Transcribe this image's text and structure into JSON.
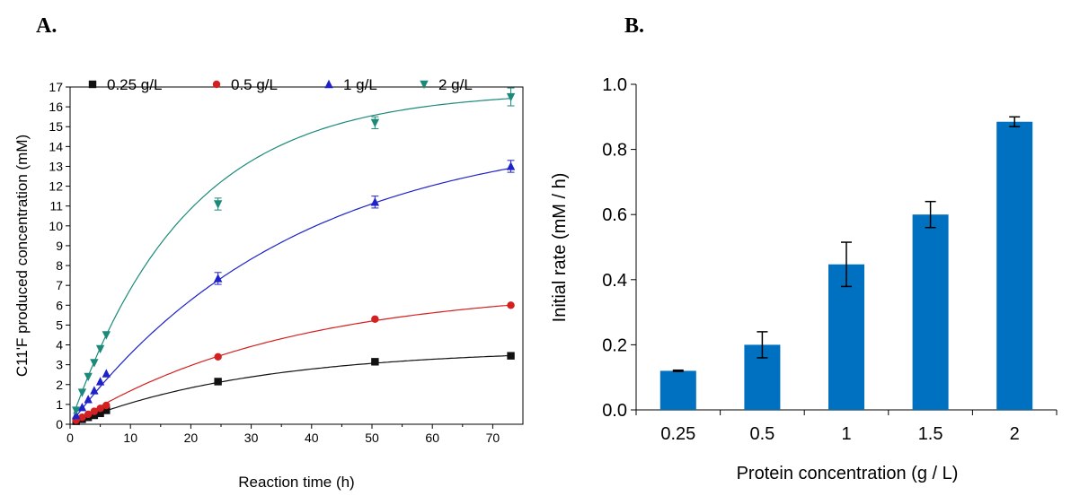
{
  "panel_labels": {
    "a": "A.",
    "b": "B."
  },
  "chart_data": [
    {
      "type": "scatter",
      "panel": "A.",
      "xlabel": "Reaction time (h)",
      "ylabel": "C11'F produced concentration (mM)",
      "xlim": [
        0,
        75
      ],
      "ylim": [
        0,
        17
      ],
      "xticks": [
        0,
        10,
        20,
        30,
        40,
        50,
        60,
        70
      ],
      "yticks": [
        0,
        1,
        2,
        3,
        4,
        5,
        6,
        7,
        8,
        9,
        10,
        11,
        12,
        13,
        14,
        15,
        16,
        17
      ],
      "grid": false,
      "legend_position": "top",
      "fit_curves": true,
      "series": [
        {
          "name": "0.25 g/L",
          "color": "#111111",
          "marker": "square",
          "x": [
            1,
            2,
            3,
            4,
            5,
            6,
            24.5,
            50.5,
            73
          ],
          "y": [
            0.15,
            0.25,
            0.35,
            0.45,
            0.55,
            0.7,
            2.15,
            3.15,
            3.45
          ],
          "err": [
            0,
            0,
            0,
            0,
            0,
            0,
            0.05,
            0.05,
            0.05
          ],
          "fit": {
            "a": 3.8,
            "k": 0.033
          }
        },
        {
          "name": "0.5 g/L",
          "color": "#d32020",
          "marker": "circle",
          "x": [
            1,
            2,
            3,
            4,
            5,
            6,
            24.5,
            50.5,
            73
          ],
          "y": [
            0.2,
            0.35,
            0.5,
            0.65,
            0.8,
            0.95,
            3.4,
            5.3,
            6.0
          ],
          "err": [
            0,
            0,
            0,
            0,
            0,
            0,
            0.05,
            0.05,
            0.05
          ],
          "fit": {
            "a": 6.9,
            "k": 0.028
          }
        },
        {
          "name": "1 g/L",
          "color": "#1e22c8",
          "marker": "triangle-up",
          "x": [
            1,
            2,
            3,
            4,
            5,
            6,
            24.5,
            50.5,
            73
          ],
          "y": [
            0.45,
            0.85,
            1.25,
            1.7,
            2.15,
            2.55,
            7.35,
            11.2,
            13.0
          ],
          "err": [
            0,
            0,
            0,
            0,
            0,
            0,
            0.3,
            0.3,
            0.3
          ],
          "fit": {
            "a": 15.0,
            "k": 0.027
          }
        },
        {
          "name": "2 g/L",
          "color": "#1b8a7a",
          "marker": "triangle-down",
          "x": [
            1,
            2,
            3,
            4,
            5,
            6,
            24.5,
            50.5,
            73
          ],
          "y": [
            0.7,
            1.6,
            2.4,
            3.1,
            3.8,
            4.5,
            11.1,
            15.2,
            16.5
          ],
          "err": [
            0,
            0,
            0,
            0,
            0,
            0,
            0.3,
            0.3,
            0.45
          ],
          "fit": {
            "a": 16.8,
            "k": 0.052
          }
        }
      ]
    },
    {
      "type": "bar",
      "panel": "B.",
      "xlabel": "Protein concentration (g / L)",
      "ylabel": "Initial rate (mM / h)",
      "categories": [
        "0.25",
        "0.5",
        "1",
        "1.5",
        "2"
      ],
      "values": [
        0.12,
        0.2,
        0.447,
        0.6,
        0.885
      ],
      "errors": [
        0.002,
        0.04,
        0.068,
        0.04,
        0.015
      ],
      "ylim": [
        0,
        1.0
      ],
      "yticks": [
        "0.0",
        "0.2",
        "0.4",
        "0.6",
        "0.8",
        "1.0"
      ],
      "bar_color": "#0070c0",
      "grid": false
    }
  ]
}
